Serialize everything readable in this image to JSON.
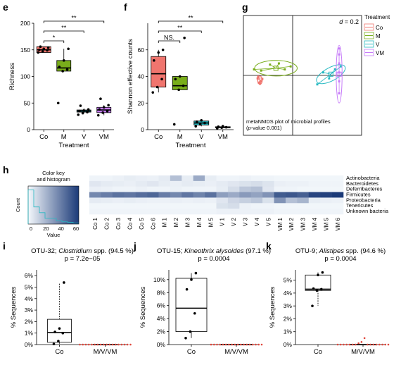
{
  "figure": {
    "colors": {
      "Co": "#f0756e",
      "M": "#79ad1b",
      "V": "#26b9c2",
      "VM": "#c77cf9",
      "heat_low": "#f4f8fc",
      "heat_high": "#1b3a78"
    }
  },
  "chart_data": [
    {
      "panel": "e",
      "type": "boxplot",
      "xlabel": "Treatment",
      "ylabel": "Richness",
      "ylim": [
        0,
        200
      ],
      "yticks": [
        0,
        50,
        100,
        150,
        200
      ],
      "categories": [
        "Co",
        "M",
        "V",
        "VM"
      ],
      "boxes": [
        {
          "name": "Co",
          "q1": 145,
          "median": 150,
          "q3": 156,
          "whisker_low": 145,
          "whisker_high": 156,
          "points": [
            145,
            147,
            149,
            150,
            152,
            154,
            156
          ]
        },
        {
          "name": "M",
          "q1": 110,
          "median": 116,
          "q3": 130,
          "whisker_low": 110,
          "whisker_high": 152,
          "points": [
            50,
            110,
            113,
            118,
            130,
            152
          ]
        },
        {
          "name": "V",
          "q1": 33,
          "median": 35,
          "q3": 37,
          "whisker_low": 31,
          "whisker_high": 40,
          "points": [
            28,
            31,
            33,
            35,
            36,
            38,
            45
          ]
        },
        {
          "name": "VM",
          "q1": 32,
          "median": 37,
          "q3": 42,
          "whisker_low": 27,
          "whisker_high": 46,
          "points": [
            27,
            32,
            35,
            38,
            42,
            46,
            58
          ]
        }
      ],
      "significance": [
        {
          "from": "Co",
          "to": "M",
          "label": "*"
        },
        {
          "from": "Co",
          "to": "V",
          "label": "**"
        },
        {
          "from": "Co",
          "to": "VM",
          "label": "**"
        }
      ]
    },
    {
      "panel": "f",
      "type": "boxplot",
      "xlabel": "Treatment",
      "ylabel": "Shannon effective counts",
      "ylim": [
        0,
        80
      ],
      "yticks": [
        0,
        20,
        40,
        60
      ],
      "categories": [
        "Co",
        "M",
        "V",
        "VM"
      ],
      "boxes": [
        {
          "name": "Co",
          "q1": 32,
          "median": 42,
          "q3": 55,
          "whisker_low": 28,
          "whisker_high": 60,
          "points": [
            28,
            32,
            38,
            52,
            58,
            60
          ]
        },
        {
          "name": "M",
          "q1": 30,
          "median": 33,
          "q3": 40,
          "whisker_low": 30,
          "whisker_high": 40,
          "points": [
            4,
            30,
            33,
            38,
            40,
            69
          ]
        },
        {
          "name": "V",
          "q1": 3.5,
          "median": 5,
          "q3": 6.5,
          "whisker_low": 2.5,
          "whisker_high": 7,
          "points": [
            2.5,
            4,
            5,
            6,
            7
          ]
        },
        {
          "name": "VM",
          "q1": 1.4,
          "median": 1.8,
          "q3": 2.2,
          "whisker_low": 1,
          "whisker_high": 2.6,
          "points": [
            1,
            1.5,
            1.8,
            2.2,
            2.6
          ]
        }
      ],
      "significance": [
        {
          "from": "Co",
          "to": "M",
          "label": "NS."
        },
        {
          "from": "Co",
          "to": "V",
          "label": "**"
        },
        {
          "from": "Co",
          "to": "VM",
          "label": "**"
        }
      ]
    },
    {
      "panel": "g",
      "type": "scatter",
      "scale_label": "d = 0.2",
      "caption_line1": "metaNMDS plot of microbial profiles",
      "caption_line2": "(p-value 0.001)",
      "legend": {
        "title": "Treatment",
        "items": [
          "Co",
          "M",
          "V",
          "VM"
        ],
        "placement": "right"
      },
      "xlim": [
        -1,
        1
      ],
      "ylim": [
        -1,
        1
      ],
      "groups": [
        {
          "name": "Co",
          "centroid": [
            -0.72,
            -0.08
          ],
          "points": [
            [
              -0.76,
              -0.05
            ],
            [
              -0.7,
              -0.1
            ],
            [
              -0.74,
              -0.12
            ],
            [
              -0.68,
              -0.06
            ],
            [
              -0.72,
              -0.14
            ],
            [
              -0.75,
              -0.02
            ]
          ],
          "ellipse": {
            "rx": 0.04,
            "ry": 0.07
          }
        },
        {
          "name": "M",
          "centroid": [
            -0.45,
            0.12
          ],
          "points": [
            [
              -0.82,
              0.1
            ],
            [
              -0.7,
              0.08
            ],
            [
              -0.4,
              0.2
            ],
            [
              -0.2,
              0.15
            ],
            [
              -0.3,
              0.1
            ],
            [
              -0.55,
              0.18
            ]
          ],
          "ellipse": {
            "rx": 0.36,
            "ry": 0.13
          }
        },
        {
          "name": "V",
          "centroid": [
            0.48,
            0.02
          ],
          "points": [
            [
              0.25,
              -0.15
            ],
            [
              0.55,
              0.1
            ],
            [
              0.35,
              0.05
            ],
            [
              0.65,
              0.15
            ],
            [
              0.45,
              -0.05
            ]
          ],
          "ellipse": {
            "rx": 0.27,
            "ry": 0.11
          }
        },
        {
          "name": "VM",
          "centroid": [
            0.62,
            0.02
          ],
          "points": [
            [
              0.62,
              0.35
            ],
            [
              0.62,
              0.2
            ],
            [
              0.62,
              0.05
            ],
            [
              0.62,
              -0.1
            ],
            [
              0.62,
              -0.3
            ],
            [
              0.62,
              0.45
            ]
          ],
          "ellipse": {
            "rx": 0.05,
            "ry": 0.48
          }
        }
      ]
    },
    {
      "panel": "h",
      "type": "heatmap",
      "key_title_line1": "Color key",
      "key_title_line2": "and histogram",
      "key_ylabel": "Count",
      "key_xlabel": "Value",
      "key_xticks": [
        "0",
        "20",
        "40",
        "60"
      ],
      "key_hist": [
        6,
        3,
        2,
        1,
        1,
        0.6,
        0.4,
        0.3,
        0.2
      ],
      "samples": [
        "Co 1",
        "Co 2",
        "Co 3",
        "Co 4",
        "Co 5",
        "Co 6",
        "M 1",
        "M 2",
        "M 3",
        "M 4",
        "M 5",
        "V 1",
        "V 2",
        "V 3",
        "V 4",
        "V 5",
        "VM 1",
        "VM 2",
        "VM 3",
        "VM 4",
        "VM 5",
        "VM 6"
      ],
      "taxa": [
        "Actinobacteria",
        "Bacteroidetes",
        "Deferribacteres",
        "Firmicutes",
        "Proteobacteria",
        "Tenericutes",
        "Unknown bacteria"
      ],
      "values": [
        [
          2,
          2,
          3,
          5,
          4,
          3,
          6,
          25,
          5,
          35,
          5,
          2,
          2,
          3,
          2,
          2,
          1,
          1,
          1,
          1,
          1,
          1
        ],
        [
          8,
          6,
          5,
          4,
          6,
          8,
          5,
          4,
          6,
          5,
          4,
          6,
          8,
          10,
          12,
          9,
          4,
          3,
          3,
          2,
          2,
          2
        ],
        [
          4,
          3,
          2,
          2,
          3,
          2,
          2,
          3,
          2,
          2,
          2,
          5,
          12,
          22,
          25,
          8,
          2,
          2,
          1,
          1,
          1,
          1
        ],
        [
          50,
          55,
          60,
          58,
          62,
          65,
          55,
          50,
          58,
          52,
          60,
          40,
          35,
          42,
          38,
          45,
          70,
          72,
          68,
          80,
          82,
          85
        ],
        [
          6,
          5,
          4,
          5,
          4,
          3,
          3,
          4,
          3,
          4,
          3,
          8,
          15,
          18,
          22,
          10,
          45,
          25,
          30,
          5,
          4,
          3
        ],
        [
          1,
          1,
          1,
          1,
          1,
          1,
          1,
          1,
          1,
          1,
          1,
          10,
          12,
          3,
          2,
          2,
          1,
          1,
          1,
          1,
          1,
          1
        ],
        [
          2,
          2,
          2,
          2,
          2,
          2,
          2,
          2,
          2,
          2,
          2,
          3,
          3,
          3,
          3,
          3,
          2,
          2,
          2,
          2,
          2,
          2
        ]
      ],
      "vmax": 85
    },
    {
      "panel": "i",
      "type": "boxplot",
      "title_prefix": "OTU-32; ",
      "title_taxon": "Clostridium",
      "title_suffix": " spp. (94.5 %)",
      "pvalue": "p = 7.2e−05",
      "ylabel": "% Sequences",
      "ylim": [
        0,
        6.5
      ],
      "yticks": [
        "0%",
        "1%",
        "2%",
        "3%",
        "4%",
        "5%",
        "6%"
      ],
      "categories": [
        "Co",
        "M/V/VM"
      ],
      "boxes": [
        {
          "name": "Co",
          "q1": 0.2,
          "median": 1.05,
          "q3": 2.2,
          "whisker_low": 0.05,
          "whisker_high": 5.3,
          "points": [
            0.05,
            0.3,
            1.0,
            1.1,
            1.4,
            5.4
          ]
        },
        {
          "name": "M/V/VM",
          "q1": 0,
          "median": 0,
          "q3": 0,
          "whisker_low": 0,
          "whisker_high": 0,
          "points": [
            0,
            0,
            0,
            0,
            0,
            0,
            0,
            0,
            0,
            0,
            0,
            0,
            0,
            0,
            0,
            0,
            0,
            0
          ]
        }
      ]
    },
    {
      "panel": "j",
      "type": "boxplot",
      "title_prefix": "OTU-15; ",
      "title_taxon": "Kineothrix alysoides",
      "title_suffix": " (97.1 %)",
      "pvalue": "p = 0.0004",
      "ylabel": "% Sequences",
      "ylim": [
        0,
        11.5
      ],
      "yticks": [
        "0%",
        "2%",
        "4%",
        "6%",
        "8%",
        "10%"
      ],
      "categories": [
        "Co",
        "M/V/VM"
      ],
      "boxes": [
        {
          "name": "Co",
          "q1": 2.0,
          "median": 5.6,
          "q3": 10.2,
          "whisker_low": 1.0,
          "whisker_high": 11.0,
          "points": [
            1.0,
            2.0,
            4.8,
            8.5,
            10.0,
            11.0
          ]
        },
        {
          "name": "M/V/VM",
          "q1": 0,
          "median": 0,
          "q3": 0,
          "whisker_low": 0,
          "whisker_high": 0,
          "points": [
            0,
            0,
            0,
            0,
            0,
            0,
            0,
            0,
            0,
            0,
            0,
            0,
            0,
            0,
            0,
            0,
            0,
            0
          ]
        }
      ]
    },
    {
      "panel": "k",
      "type": "boxplot",
      "title_prefix": "OTU-9; ",
      "title_taxon": "Alistipes",
      "title_suffix": " spp. (94.6 %)",
      "pvalue": "p = 0.0004",
      "ylabel": "% Sequences",
      "ylim": [
        0,
        5.8
      ],
      "yticks": [
        "0%",
        "1%",
        "2%",
        "3%",
        "4%",
        "5%"
      ],
      "categories": [
        "Co",
        "M/V/VM"
      ],
      "boxes": [
        {
          "name": "Co",
          "q1": 4.2,
          "median": 4.3,
          "q3": 5.4,
          "whisker_low": 3.0,
          "whisker_high": 5.6,
          "points": [
            3.0,
            4.2,
            4.3,
            4.35,
            5.4,
            5.6
          ]
        },
        {
          "name": "M/V/VM",
          "q1": 0,
          "median": 0,
          "q3": 0,
          "whisker_low": 0,
          "whisker_high": 0,
          "points": [
            0,
            0,
            0,
            0,
            0,
            0,
            0,
            0.1,
            0.2,
            0.5,
            0,
            0,
            0,
            0,
            0,
            0,
            0,
            0
          ]
        }
      ]
    }
  ]
}
